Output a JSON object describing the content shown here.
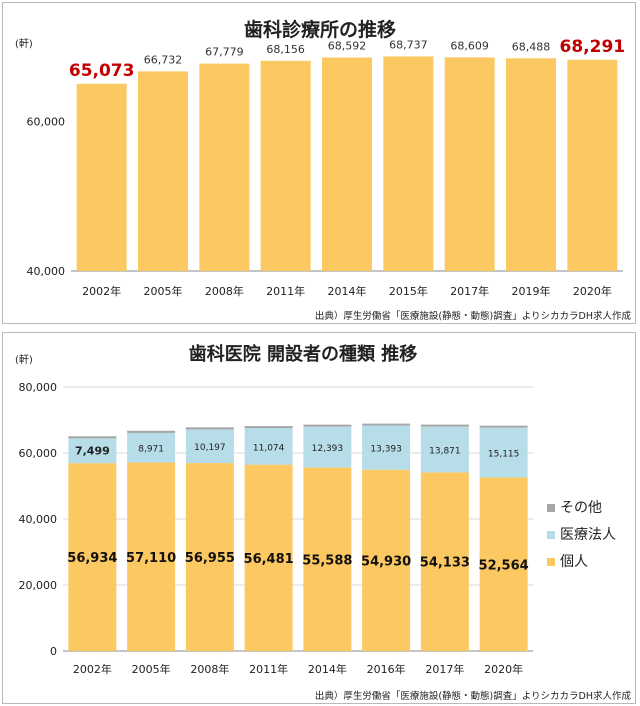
{
  "colors": {
    "bar": "#fcc862",
    "bar2_medical": "#b7dde8",
    "bar2_other": "#a6a6a6",
    "highlight": "#c00000"
  },
  "chart_data": [
    {
      "type": "bar",
      "title": "歯科診療所の推移",
      "unit": "(軒)",
      "categories": [
        "2002年",
        "2005年",
        "2008年",
        "2011年",
        "2014年",
        "2015年",
        "2017年",
        "2019年",
        "2020年"
      ],
      "values": [
        65073,
        66732,
        67779,
        68156,
        68592,
        68737,
        68609,
        68488,
        68291
      ],
      "value_labels": [
        "65,073",
        "66,732",
        "67,779",
        "68,156",
        "68,592",
        "68,737",
        "68,609",
        "68,488",
        "68,291"
      ],
      "highlight_indices": [
        0,
        8
      ],
      "ylim": [
        40000,
        70000
      ],
      "y_ticks": [
        40000,
        60000
      ],
      "y_tick_labels": [
        "40,000",
        "60,000"
      ],
      "source": "出典）厚生労働省「医療施設(静態・動態)調査」よりシカカラDH求人作成"
    },
    {
      "type": "bar",
      "stacked": true,
      "title": "歯科医院 開設者の種類 推移",
      "unit": "(軒)",
      "categories": [
        "2002年",
        "2005年",
        "2008年",
        "2011年",
        "2014年",
        "2016年",
        "2017年",
        "2020年"
      ],
      "series": [
        {
          "name": "個人",
          "values": [
            56934,
            57110,
            56955,
            56481,
            55588,
            54930,
            54133,
            52564
          ],
          "labels": [
            "56,934",
            "57,110",
            "56,955",
            "56,481",
            "55,588",
            "54,930",
            "54,133",
            "52,564"
          ]
        },
        {
          "name": "医療法人",
          "values": [
            7499,
            8971,
            10197,
            11074,
            12393,
            13393,
            13871,
            15115
          ],
          "labels": [
            "7,499",
            "8,971",
            "10,197",
            "11,074",
            "12,393",
            "13,393",
            "13,871",
            "15,115"
          ]
        },
        {
          "name": "その他",
          "values": [
            640,
            651,
            627,
            601,
            611,
            575,
            605,
            612
          ]
        }
      ],
      "legend_order": [
        "その他",
        "医療法人",
        "個人"
      ],
      "legend": "right",
      "ylim": [
        0,
        80000
      ],
      "y_ticks": [
        0,
        20000,
        40000,
        60000,
        80000
      ],
      "y_tick_labels": [
        "0",
        "20,000",
        "40,000",
        "60,000",
        "80,000"
      ],
      "source": "出典）厚生労働省「医療施設(静態・動態)調査」よりシカカラDH求人作成"
    }
  ]
}
